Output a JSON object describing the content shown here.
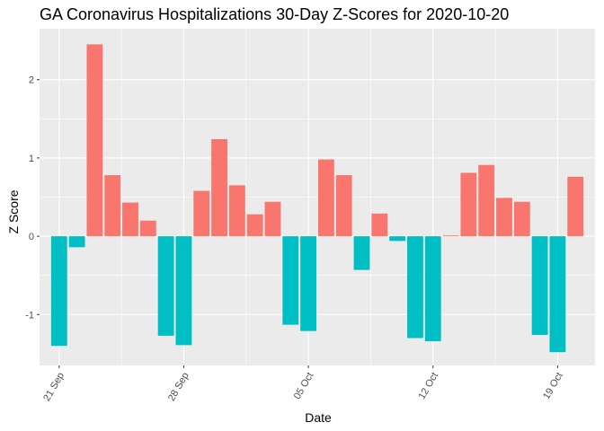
{
  "chart_data": {
    "type": "bar",
    "title": "GA Coronavirus Hospitalizations 30-Day Z-Scores for 2020-10-20",
    "xlabel": "Date",
    "ylabel": "Z Score",
    "x": [
      "2020-09-21",
      "2020-09-22",
      "2020-09-23",
      "2020-09-24",
      "2020-09-25",
      "2020-09-26",
      "2020-09-27",
      "2020-09-28",
      "2020-09-29",
      "2020-09-30",
      "2020-10-01",
      "2020-10-02",
      "2020-10-03",
      "2020-10-04",
      "2020-10-05",
      "2020-10-06",
      "2020-10-07",
      "2020-10-08",
      "2020-10-09",
      "2020-10-10",
      "2020-10-11",
      "2020-10-12",
      "2020-10-13",
      "2020-10-14",
      "2020-10-15",
      "2020-10-16",
      "2020-10-17",
      "2020-10-18",
      "2020-10-19",
      "2020-10-20"
    ],
    "values": [
      -1.4,
      -0.14,
      2.45,
      0.78,
      0.43,
      0.2,
      -1.27,
      -1.39,
      0.58,
      1.24,
      0.65,
      0.28,
      0.44,
      -1.13,
      -1.21,
      0.98,
      0.78,
      -0.43,
      0.29,
      -0.06,
      -1.3,
      -1.34,
      0.01,
      0.81,
      0.91,
      0.49,
      0.44,
      -1.26,
      -1.48,
      0.76
    ],
    "xticks": [
      "2020-09-21",
      "2020-09-28",
      "2020-10-05",
      "2020-10-12",
      "2020-10-19"
    ],
    "xtick_labels": [
      "21 Sep",
      "28 Sep",
      "05 Oct",
      "12 Oct",
      "19 Oct"
    ],
    "yticks": [
      -1,
      0,
      1,
      2
    ],
    "ylim": [
      -1.65,
      2.65
    ],
    "grid": true,
    "colors": {
      "positive": "#F8766D",
      "negative": "#00BFC4",
      "panel": "#EBEBEB",
      "grid_major": "#FFFFFF",
      "tick": "#333333"
    }
  }
}
